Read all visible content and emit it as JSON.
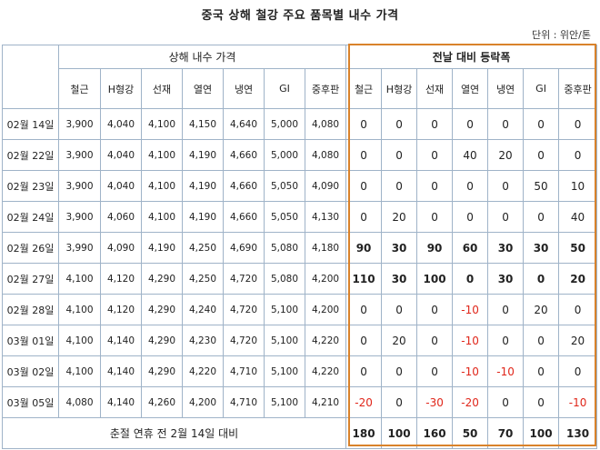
{
  "title": "중국 상해 철강 주요 품목별 내수 가격",
  "unit": "단위 : 위안/톤",
  "price_group_label": "상해 내수 가격",
  "change_group_label": "전날 대비 등락폭",
  "columns": [
    "철근",
    "H형강",
    "선재",
    "열연",
    "냉연",
    "GI",
    "중후판"
  ],
  "rows": [
    {
      "date": "02월 14일",
      "prices": [
        "3,900",
        "4,040",
        "4,100",
        "4,150",
        "4,640",
        "5,000",
        "4,080"
      ],
      "changes": [
        "0",
        "0",
        "0",
        "0",
        "0",
        "0",
        "0"
      ]
    },
    {
      "date": "02월 22일",
      "prices": [
        "3,900",
        "4,040",
        "4,100",
        "4,190",
        "4,660",
        "5,000",
        "4,080"
      ],
      "changes": [
        "0",
        "0",
        "0",
        "40",
        "20",
        "0",
        "0"
      ]
    },
    {
      "date": "02월 23일",
      "prices": [
        "3,900",
        "4,040",
        "4,100",
        "4,190",
        "4,660",
        "5,050",
        "4,090"
      ],
      "changes": [
        "0",
        "0",
        "0",
        "0",
        "0",
        "50",
        "10"
      ]
    },
    {
      "date": "02월 24일",
      "prices": [
        "3,900",
        "4,060",
        "4,100",
        "4,190",
        "4,660",
        "5,050",
        "4,130"
      ],
      "changes": [
        "0",
        "20",
        "0",
        "0",
        "0",
        "0",
        "40"
      ]
    },
    {
      "date": "02월 26일",
      "prices": [
        "3,990",
        "4,090",
        "4,190",
        "4,250",
        "4,690",
        "5,080",
        "4,180"
      ],
      "changes": [
        "90",
        "30",
        "90",
        "60",
        "30",
        "30",
        "50"
      ]
    },
    {
      "date": "02월 27일",
      "prices": [
        "4,100",
        "4,120",
        "4,290",
        "4,250",
        "4,720",
        "5,080",
        "4,200"
      ],
      "changes": [
        "110",
        "30",
        "100",
        "0",
        "30",
        "0",
        "20"
      ]
    },
    {
      "date": "02월 28일",
      "prices": [
        "4,100",
        "4,120",
        "4,290",
        "4,240",
        "4,720",
        "5,100",
        "4,200"
      ],
      "changes": [
        "0",
        "0",
        "0",
        "-10",
        "0",
        "20",
        "0"
      ]
    },
    {
      "date": "03월 01일",
      "prices": [
        "4,100",
        "4,140",
        "4,290",
        "4,230",
        "4,720",
        "5,100",
        "4,220"
      ],
      "changes": [
        "0",
        "20",
        "0",
        "-10",
        "0",
        "0",
        "20"
      ]
    },
    {
      "date": "03월 02일",
      "prices": [
        "4,100",
        "4,140",
        "4,290",
        "4,220",
        "4,710",
        "5,100",
        "4,220"
      ],
      "changes": [
        "0",
        "0",
        "0",
        "-10",
        "-10",
        "0",
        "0"
      ]
    },
    {
      "date": "03월 05일",
      "prices": [
        "4,080",
        "4,140",
        "4,260",
        "4,200",
        "4,710",
        "5,100",
        "4,210"
      ],
      "changes": [
        "-20",
        "0",
        "-30",
        "-20",
        "0",
        "0",
        "-10"
      ]
    }
  ],
  "footer": {
    "label": "춘절 연휴 전 2월 14일 대비",
    "changes": [
      "180",
      "100",
      "160",
      "50",
      "70",
      "100",
      "130"
    ]
  },
  "colors": {
    "highlight_box": "#d9822b",
    "negative": "#e0261a",
    "grid": "#9fb3c8"
  }
}
